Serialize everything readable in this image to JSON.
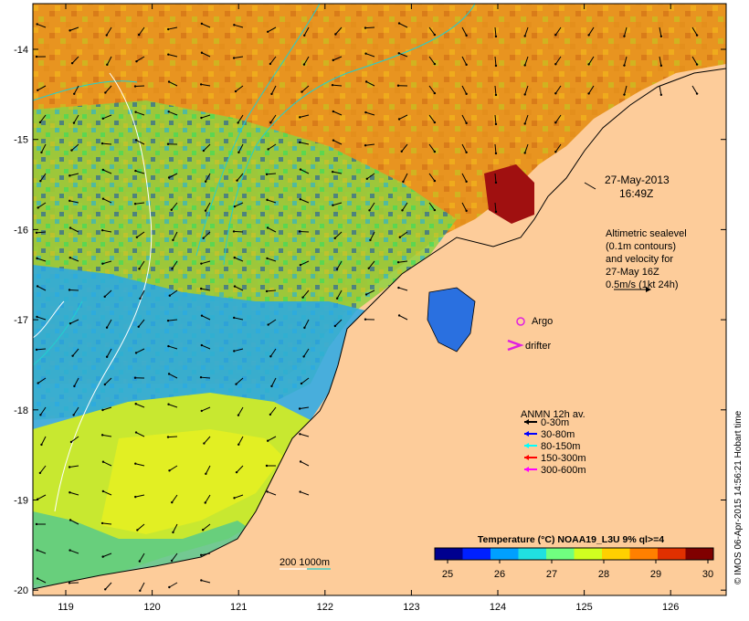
{
  "map": {
    "date_label_line1": "27-May-2013",
    "date_label_line2": "16:49Z",
    "altimetry_lines": [
      "Altimetric sealevel",
      "(0.1m contours)",
      "and velocity for",
      "27-May 16Z",
      "0.5m/s (1kt 24h)"
    ],
    "argo_label": "Argo",
    "drifter_label": "drifter",
    "anmn_title": "ANMN 12h av.",
    "anmn_legend": [
      {
        "label": "0-30m",
        "color": "#000000"
      },
      {
        "label": "30-80m",
        "color": "#0000ff"
      },
      {
        "label": "80-150m",
        "color": "#00ffff"
      },
      {
        "label": "150-300m",
        "color": "#ff0000"
      },
      {
        "label": "300-600m",
        "color": "#ff00ff"
      }
    ],
    "depth_contour_label": "200  1000m",
    "colorbar_title": "Temperature (°C) NOAA19_L3U 9% ql>=4",
    "colorbar_ticks": [
      "25",
      "26",
      "27",
      "28",
      "29",
      "30"
    ],
    "colorbar_colors": [
      "#00008f",
      "#0020ff",
      "#00a0ff",
      "#20e0e0",
      "#70ff80",
      "#d0ff20",
      "#ffd000",
      "#ff8000",
      "#e03000",
      "#800000"
    ],
    "credit": "© IMOS 06-Apr-2015 14:56:21 Hobart time",
    "lat_ticks": [
      "-14",
      "-15",
      "-16",
      "-17",
      "-18",
      "-19",
      "-20"
    ],
    "lon_ticks": [
      "119",
      "120",
      "121",
      "122",
      "123",
      "124",
      "125",
      "126"
    ],
    "land_color": "#fdcc9a"
  }
}
